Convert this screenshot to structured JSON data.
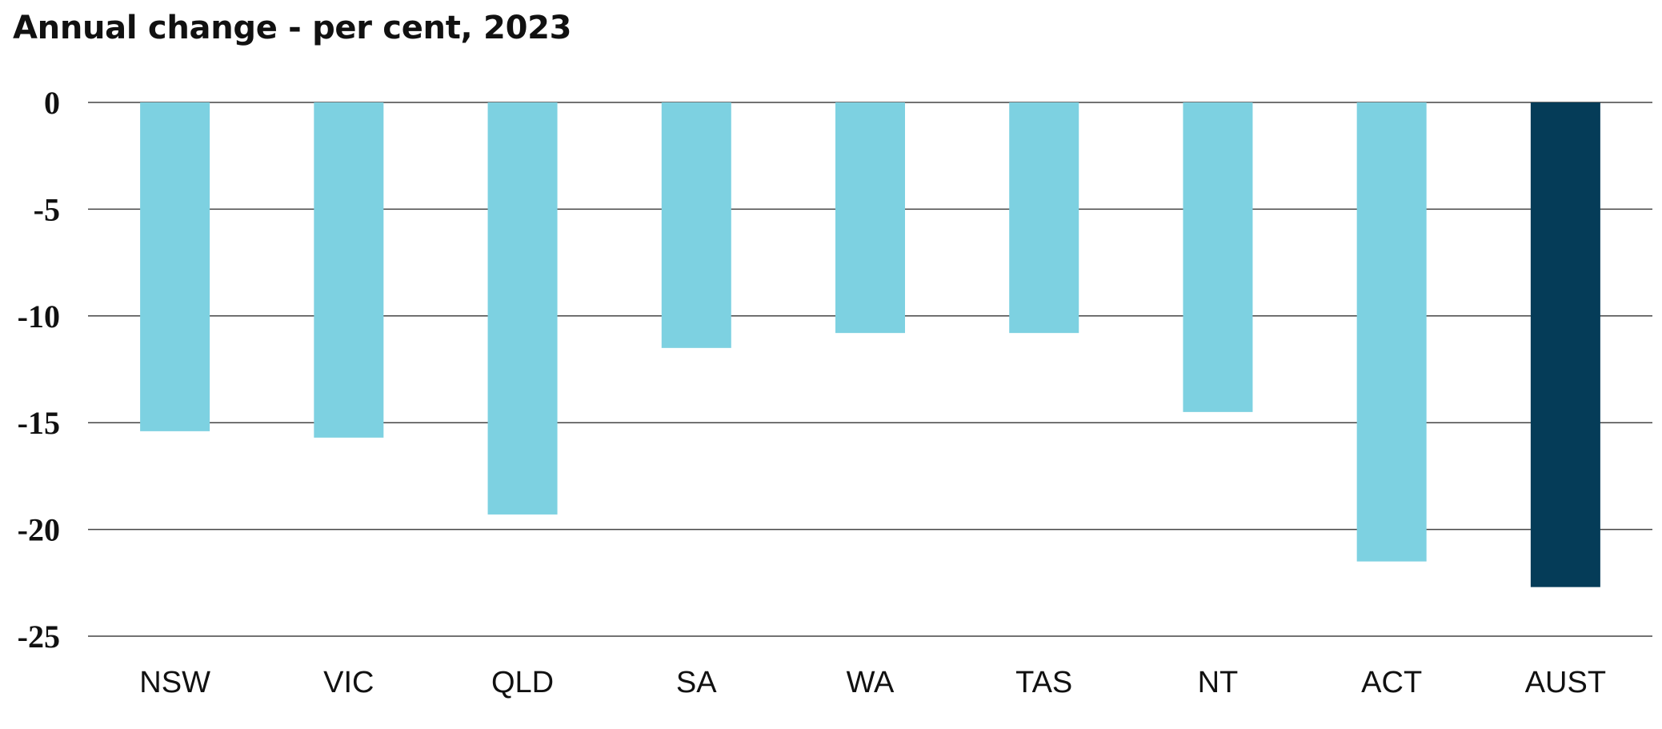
{
  "chart_data": {
    "type": "bar",
    "title": "Annual change - per cent, 2023",
    "xlabel": "",
    "ylabel": "",
    "categories": [
      "NSW",
      "VIC",
      "QLD",
      "SA",
      "WA",
      "TAS",
      "NT",
      "ACT",
      "AUST"
    ],
    "values": [
      -15.4,
      -15.7,
      -19.3,
      -11.5,
      -10.8,
      -10.8,
      -14.5,
      -21.5,
      -22.7
    ],
    "ylim": [
      -25,
      0
    ],
    "yticks": [
      0,
      -5,
      -10,
      -15,
      -20,
      -25
    ],
    "grid": true,
    "legend": "none",
    "colors": {
      "bar": "#7dd1e1",
      "highlight_bar": "#053c58",
      "gridline": "#444444",
      "text": "#111111"
    },
    "highlight_category": "AUST"
  }
}
